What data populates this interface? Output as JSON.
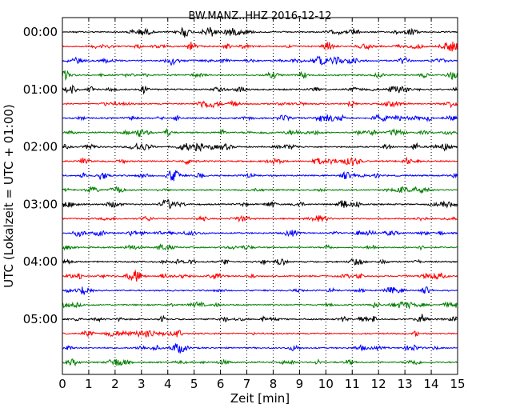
{
  "chart_data": {
    "type": "line",
    "title": "BW.MANZ..HHZ 2016-12-12",
    "xlabel": "Zeit  [min]",
    "ylabel": "UTC (Lokalzeit = UTC + 01:00)",
    "xlim": [
      0,
      15
    ],
    "x_ticks": [
      "0",
      "1",
      "2",
      "3",
      "4",
      "5",
      "6",
      "7",
      "8",
      "9",
      "10",
      "11",
      "12",
      "13",
      "14",
      "15"
    ],
    "y_tick_labels": [
      "00:00",
      "01:00",
      "02:00",
      "03:00",
      "04:00",
      "05:00"
    ],
    "grid": "vertical dotted at each minute",
    "row_interval_minutes": 15,
    "row_colors": [
      "#000000",
      "#ff0000",
      "#0000ff",
      "#007f00"
    ],
    "series": [
      {
        "start": "00:00"
      },
      {
        "start": "00:15"
      },
      {
        "start": "00:30"
      },
      {
        "start": "00:45"
      },
      {
        "start": "01:00"
      },
      {
        "start": "01:15"
      },
      {
        "start": "01:30"
      },
      {
        "start": "01:45"
      },
      {
        "start": "02:00"
      },
      {
        "start": "02:15"
      },
      {
        "start": "02:30"
      },
      {
        "start": "02:45"
      },
      {
        "start": "03:00"
      },
      {
        "start": "03:15"
      },
      {
        "start": "03:30"
      },
      {
        "start": "03:45"
      },
      {
        "start": "04:00"
      },
      {
        "start": "04:15"
      },
      {
        "start": "04:30"
      },
      {
        "start": "04:45"
      },
      {
        "start": "05:00"
      },
      {
        "start": "05:15"
      },
      {
        "start": "05:30"
      },
      {
        "start": "05:45"
      }
    ]
  }
}
